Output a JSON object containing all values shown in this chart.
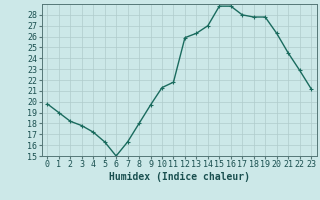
{
  "x": [
    0,
    1,
    2,
    3,
    4,
    5,
    6,
    7,
    8,
    9,
    10,
    11,
    12,
    13,
    14,
    15,
    16,
    17,
    18,
    19,
    20,
    21,
    22,
    23
  ],
  "y": [
    19.8,
    19.0,
    18.2,
    17.8,
    17.2,
    16.3,
    15.0,
    16.3,
    18.0,
    19.7,
    21.3,
    21.8,
    25.9,
    26.3,
    27.0,
    28.8,
    28.8,
    28.0,
    27.8,
    27.8,
    26.3,
    24.5,
    22.9,
    21.2
  ],
  "line_color": "#1a6b5e",
  "marker": "+",
  "marker_size": 3,
  "bg_color": "#cce8e8",
  "grid_color": "#b0cccc",
  "xlabel": "Humidex (Indice chaleur)",
  "xlabel_fontsize": 7,
  "xlim": [
    -0.5,
    23.5
  ],
  "ylim": [
    15,
    29
  ],
  "yticks": [
    15,
    16,
    17,
    18,
    19,
    20,
    21,
    22,
    23,
    24,
    25,
    26,
    27,
    28
  ],
  "xticks": [
    0,
    1,
    2,
    3,
    4,
    5,
    6,
    7,
    8,
    9,
    10,
    11,
    12,
    13,
    14,
    15,
    16,
    17,
    18,
    19,
    20,
    21,
    22,
    23
  ],
  "tick_fontsize": 6,
  "line_width": 1.0
}
